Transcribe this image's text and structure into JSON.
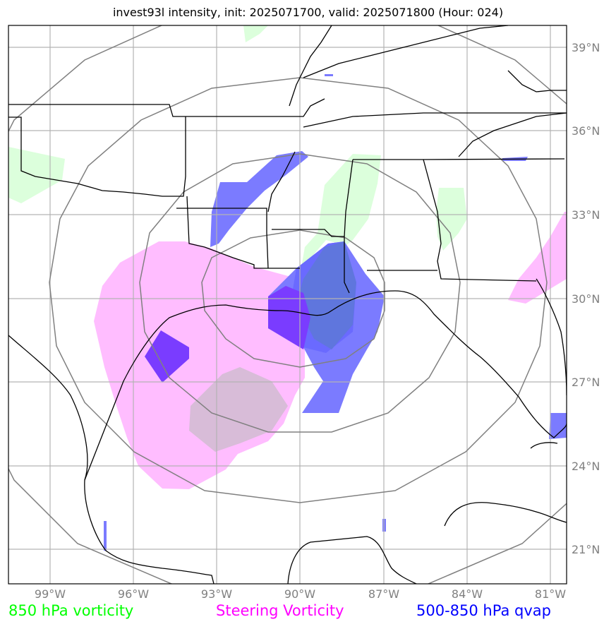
{
  "title": "invest93l intensity, init: 2025071700, valid: 2025071800 (Hour: 024)",
  "latitude_labels": [
    "39°N",
    "36°N",
    "33°N",
    "30°N",
    "27°N",
    "24°N",
    "21°N"
  ],
  "longitude_labels": [
    "99°W",
    "96°W",
    "93°W",
    "90°W",
    "87°W",
    "84°W",
    "81°W"
  ],
  "legend": [
    {
      "label": "850 hPa vorticity",
      "color": "#00ff00"
    },
    {
      "label": "Steering Vorticity",
      "color": "#ff00ff"
    },
    {
      "label": "500-850 hPa qvap",
      "color": "#0000ff"
    }
  ],
  "colors": {
    "vorticity_850": "#dcffdc",
    "steering_vorticity": "#ffbdff",
    "qvap": "#7b7bff",
    "qvap_dark": "#7a3cff",
    "range_rings": "#808080",
    "grid": "#b3b3b3",
    "coastline": "#000000"
  }
}
